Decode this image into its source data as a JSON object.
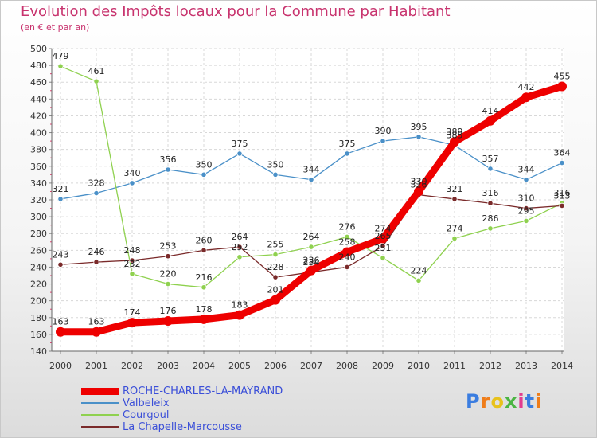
{
  "header": {
    "title": "Evolution des Impôts locaux pour la Commune par Habitant",
    "subtitle": "(en € et par an)"
  },
  "logo": {
    "text": "Proxiti",
    "letter_colors": [
      "#3b7de0",
      "#ef7d1a",
      "#e8c21c",
      "#4bb543",
      "#e23c8f",
      "#3b7de0",
      "#ef7d1a"
    ]
  },
  "chart_data": {
    "type": "line",
    "title": "Evolution des Impôts locaux pour la Commune par Habitant",
    "subtitle": "(en € et par an)",
    "xlabel": "",
    "ylabel": "",
    "x": [
      "2000",
      "2001",
      "2002",
      "2003",
      "2004",
      "2005",
      "2006",
      "2007",
      "2008",
      "2009",
      "2010",
      "2011",
      "2012",
      "2013",
      "2014"
    ],
    "ylim": [
      140,
      500
    ],
    "yticks": [
      140,
      160,
      180,
      200,
      220,
      240,
      260,
      280,
      300,
      320,
      340,
      360,
      380,
      400,
      420,
      440,
      460,
      480,
      500
    ],
    "grid": true,
    "legend_position": "bottom-left",
    "series": [
      {
        "name": "ROCHE-CHARLES-LA-MAYRAND",
        "color": "#ee0000",
        "width": "thick",
        "values": [
          163,
          163,
          174,
          176,
          178,
          183,
          201,
          236,
          258,
          274,
          330,
          389,
          414,
          442,
          455
        ]
      },
      {
        "name": "Valbeleix",
        "color": "#4a90c8",
        "width": "thin",
        "values": [
          321,
          328,
          340,
          356,
          350,
          375,
          350,
          344,
          375,
          390,
          395,
          385,
          357,
          344,
          364
        ]
      },
      {
        "name": "Courgoul",
        "color": "#8fd14f",
        "width": "thin",
        "values": [
          479,
          461,
          232,
          220,
          216,
          252,
          255,
          264,
          276,
          251,
          224,
          274,
          286,
          295,
          316
        ]
      },
      {
        "name": "La Chapelle-Marcousse",
        "color": "#7a2a2a",
        "width": "thin",
        "values": [
          243,
          246,
          248,
          253,
          260,
          264,
          228,
          234,
          240,
          265,
          326,
          321,
          316,
          310,
          313
        ]
      }
    ]
  }
}
